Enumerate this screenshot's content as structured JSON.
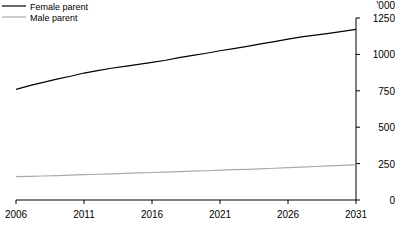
{
  "chart_data": {
    "type": "line",
    "y_label": "'000",
    "x": [
      2006,
      2007,
      2008,
      2009,
      2010,
      2011,
      2012,
      2013,
      2014,
      2015,
      2016,
      2017,
      2018,
      2019,
      2020,
      2021,
      2022,
      2023,
      2024,
      2025,
      2026,
      2027,
      2028,
      2029,
      2030,
      2031
    ],
    "series": [
      {
        "name": "Female parent",
        "color": "#000000",
        "values": [
          760,
          785,
          808,
          830,
          850,
          872,
          888,
          905,
          918,
          932,
          945,
          960,
          978,
          993,
          1008,
          1025,
          1040,
          1055,
          1072,
          1088,
          1105,
          1120,
          1133,
          1145,
          1158,
          1172
        ]
      },
      {
        "name": "Male parent",
        "color": "#aaaaaa",
        "values": [
          160,
          162,
          165,
          168,
          171,
          174,
          177,
          180,
          183,
          186,
          189,
          192,
          195,
          198,
          201,
          205,
          208,
          211,
          214,
          218,
          222,
          226,
          230,
          234,
          238,
          243
        ]
      }
    ],
    "xlim": [
      2006,
      2031
    ],
    "xticks": [
      2006,
      2011,
      2016,
      2021,
      2026,
      2031
    ],
    "ylim": [
      0,
      1250
    ],
    "yticks": [
      0,
      250,
      500,
      750,
      1000,
      1250
    ],
    "grid": false,
    "legend": "top-left"
  }
}
